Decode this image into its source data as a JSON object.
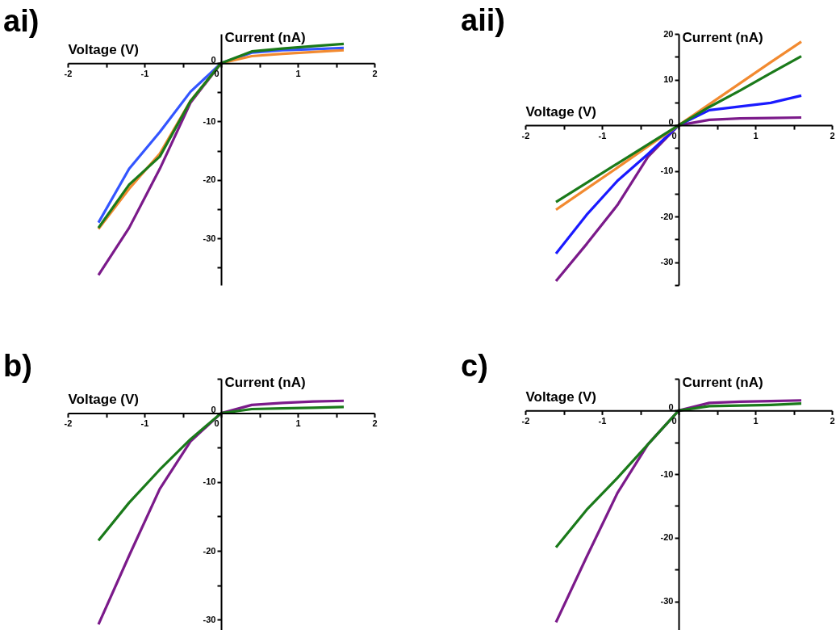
{
  "chart_data": [
    {
      "type": "line",
      "title": "ai)",
      "xlabel": "Voltage (V)",
      "ylabel": "Current (nA)",
      "x": [
        -1.6,
        -1.2,
        -0.8,
        -0.4,
        0,
        0.4,
        0.8,
        1.2,
        1.6
      ],
      "xlim": [
        -2,
        2
      ],
      "ylim": [
        -38,
        5
      ],
      "xticks": [
        -2,
        {
          "value": -1.5,
          "label": null
        },
        -1,
        {
          "value": -0.5,
          "label": null
        },
        0,
        {
          "value": 0.5,
          "label": null
        },
        1,
        {
          "value": 1.5,
          "label": null
        },
        2
      ],
      "yticks": [
        {
          "value": -35,
          "label": null
        },
        -30,
        {
          "value": -25,
          "label": null
        },
        -20,
        {
          "value": -15,
          "label": null
        },
        -10,
        {
          "value": -5,
          "label": null
        },
        0
      ],
      "line_style": "solid",
      "series": [
        {
          "color": "#7b1a8a",
          "values": [
            -36.3,
            -28.2,
            -18.1,
            -6.8,
            0,
            null,
            null,
            null,
            null
          ]
        },
        {
          "color": "#3355ff",
          "values": [
            -27.3,
            -18.1,
            -11.8,
            -4.9,
            0,
            1.8,
            2.2,
            2.4,
            2.6
          ]
        },
        {
          "color": "#f28a30",
          "values": [
            -28.4,
            -21.5,
            -15.5,
            -6.5,
            0,
            1.2,
            1.6,
            1.9,
            2.2
          ]
        },
        {
          "color": "#1a7a1a",
          "values": [
            -28.2,
            -20.8,
            -16,
            -6.5,
            0,
            2,
            2.5,
            2.9,
            3.3
          ]
        }
      ]
    },
    {
      "type": "line",
      "title": "aii)",
      "xlabel": "Voltage (V)",
      "ylabel": "Current (nA)",
      "x": [
        -1.6,
        -1.2,
        -0.8,
        -0.4,
        0,
        0.4,
        0.8,
        1.2,
        1.6
      ],
      "xlim": [
        -2,
        2
      ],
      "ylim": [
        -35,
        20
      ],
      "xticks": [
        -2,
        {
          "value": -1.5,
          "label": null
        },
        -1,
        {
          "value": -0.5,
          "label": null
        },
        0,
        {
          "value": 0.5,
          "label": null
        },
        1,
        {
          "value": 1.5,
          "label": null
        },
        2
      ],
      "yticks": [
        {
          "value": -35,
          "label": null
        },
        -30,
        {
          "value": -25,
          "label": null
        },
        -20,
        {
          "value": -15,
          "label": null
        },
        -10,
        {
          "value": -5,
          "label": null
        },
        0,
        {
          "value": 5,
          "label": null
        },
        10,
        {
          "value": 15,
          "label": null
        },
        20
      ],
      "line_style": "solid",
      "series": [
        {
          "color": "#7b1a8a",
          "values": [
            -34.1,
            -26,
            -17.5,
            -6.9,
            0,
            1.2,
            1.5,
            1.6,
            1.7
          ]
        },
        {
          "color": "#1a1aff",
          "values": [
            -28.1,
            -19.6,
            -12.2,
            -6.3,
            0,
            3.3,
            4.1,
            4.9,
            6.5
          ]
        },
        {
          "color": "#f28a30",
          "values": [
            -18.5,
            -13.9,
            -9.3,
            -4.6,
            0,
            4.6,
            9.2,
            13.8,
            18.3
          ]
        },
        {
          "color": "#1a7a1a",
          "values": [
            -16.8,
            -12.6,
            -8.4,
            -4.2,
            0,
            4,
            7.6,
            11.4,
            15.1
          ]
        }
      ]
    },
    {
      "type": "line",
      "title": "b)",
      "xlabel": "Voltage (V)",
      "ylabel": "Current (nA)",
      "x": [
        -1.6,
        -1.2,
        -0.8,
        -0.4,
        0,
        0.4,
        0.8,
        1.2,
        1.6
      ],
      "xlim": [
        -2,
        2
      ],
      "ylim": [
        -31.5,
        5
      ],
      "xticks": [
        -2,
        {
          "value": -1.5,
          "label": null
        },
        -1,
        {
          "value": -0.5,
          "label": null
        },
        0,
        {
          "value": 0.5,
          "label": null
        },
        1,
        {
          "value": 1.5,
          "label": null
        },
        2
      ],
      "yticks": [
        -30,
        {
          "value": -25,
          "label": null
        },
        -20,
        {
          "value": -15,
          "label": null
        },
        -10,
        {
          "value": -5,
          "label": null
        },
        0,
        {
          "value": 5,
          "label": null
        }
      ],
      "line_style": "solid",
      "series": [
        {
          "color": "#7b1a8a",
          "values": [
            -30.7,
            -20.7,
            -11,
            -4.1,
            0,
            1.2,
            1.5,
            1.7,
            1.8
          ]
        },
        {
          "color": "#1a7a1a",
          "values": [
            -18.5,
            -13,
            -8.2,
            -3.8,
            0,
            0.6,
            0.7,
            0.8,
            0.9
          ]
        }
      ]
    },
    {
      "type": "line",
      "title": "c)",
      "xlabel": "Voltage (V)",
      "ylabel": "Current (nA)",
      "x": [
        -1.6,
        -1.2,
        -0.8,
        -0.4,
        0,
        0.4,
        0.8,
        1.2,
        1.6
      ],
      "xlim": [
        -2,
        2
      ],
      "ylim": [
        -34.5,
        5
      ],
      "xticks": [
        -2,
        {
          "value": -1.5,
          "label": null
        },
        -1,
        {
          "value": -0.5,
          "label": null
        },
        0,
        {
          "value": 0.5,
          "label": null
        },
        1,
        {
          "value": 1.5,
          "label": null
        },
        2
      ],
      "yticks": [
        {
          "value": -25,
          "label": null
        },
        -30,
        -20,
        {
          "value": -15,
          "label": null
        },
        -10,
        {
          "value": -5,
          "label": null
        },
        0,
        {
          "value": 5,
          "label": null
        }
      ],
      "line_style": "solid",
      "series": [
        {
          "color": "#7b1a8a",
          "values": [
            -33.3,
            -23,
            -13,
            -5.3,
            0,
            1.2,
            1.4,
            1.5,
            1.6
          ]
        },
        {
          "color": "#1a7a1a",
          "values": [
            -21.5,
            -15.6,
            -10.6,
            -5.3,
            0,
            0.7,
            0.8,
            0.9,
            1.1
          ]
        }
      ]
    }
  ]
}
